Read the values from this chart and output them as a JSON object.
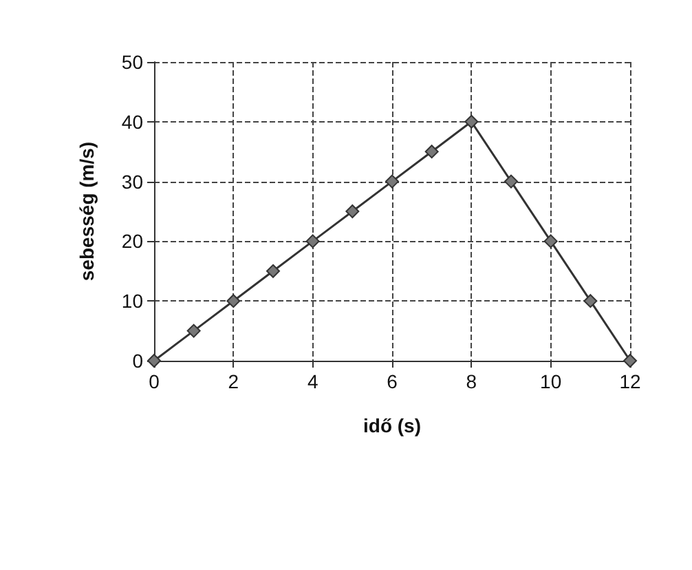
{
  "chart_data": {
    "type": "line",
    "xlabel": "idő (s)",
    "ylabel": "sebesség (m/s)",
    "x": [
      0,
      1,
      2,
      3,
      4,
      5,
      6,
      7,
      8,
      9,
      10,
      11,
      12
    ],
    "series": [
      {
        "color": "#333333",
        "values": [
          0,
          5,
          10,
          15,
          20,
          25,
          30,
          35,
          40,
          30,
          20,
          10,
          0
        ]
      }
    ],
    "xlim": [
      0,
      12
    ],
    "xticks": [
      0,
      2,
      4,
      6,
      8,
      10,
      12
    ],
    "ylim": [
      0,
      50
    ],
    "yticks": [
      0,
      10,
      20,
      30,
      40,
      50
    ],
    "grid": true,
    "marker": "diamond",
    "line_style": "solid"
  }
}
